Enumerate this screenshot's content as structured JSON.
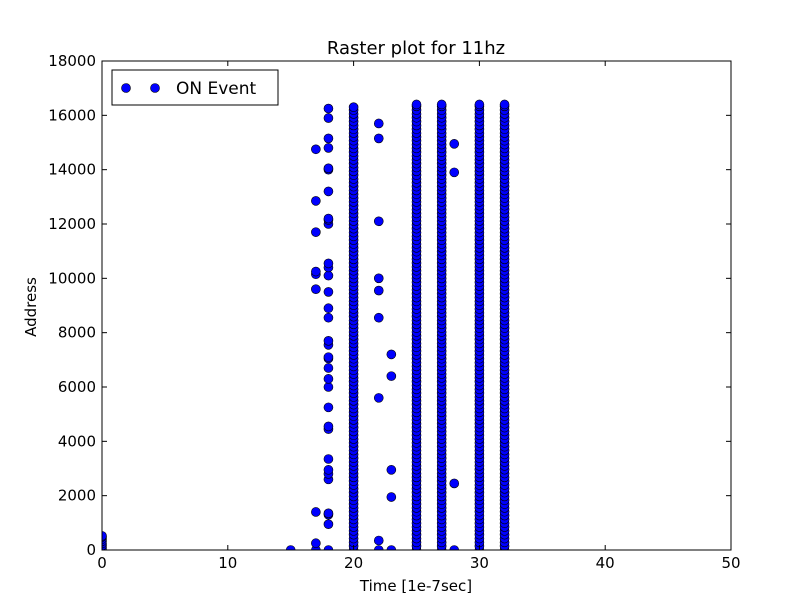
{
  "chart_data": {
    "type": "scatter",
    "title": "Raster plot for 11hz",
    "xlabel": "Time [1e-7sec]",
    "ylabel": "Address",
    "xlim": [
      0,
      50
    ],
    "ylim": [
      0,
      18000
    ],
    "xticks": [
      0,
      10,
      20,
      30,
      40,
      50
    ],
    "yticks": [
      0,
      2000,
      4000,
      6000,
      8000,
      10000,
      12000,
      14000,
      16000,
      18000
    ],
    "grid": false,
    "legend": {
      "placement": "top-left",
      "entries": [
        "ON Event"
      ]
    },
    "marker_color": "#0000ff",
    "series": [
      {
        "name": "ON Event",
        "columns": [
          {
            "x": 0,
            "y": [
              0,
              80,
              160,
              240,
              320,
              400,
              480,
              520
            ]
          },
          {
            "x": 15,
            "y": [
              0
            ]
          },
          {
            "x": 17,
            "y": [
              0,
              250,
              1400,
              9600,
              10150,
              10250,
              11700,
              12850,
              14750
            ]
          },
          {
            "x": 18,
            "y": [
              0,
              950,
              1300,
              1350,
              2600,
              2800,
              2950,
              3350,
              4450,
              4550,
              5250,
              6000,
              6300,
              6700,
              7050,
              7100,
              7550,
              7700,
              8550,
              8900,
              9500,
              10100,
              10400,
              10550,
              12000,
              12150,
              12200,
              13200,
              14000,
              14050,
              14800,
              15150,
              15900,
              16250
            ]
          },
          {
            "x": 20,
            "y": [
              0,
              16300
            ]
          },
          {
            "x": 22,
            "y": [
              0,
              350,
              5600,
              8550,
              9550,
              10000,
              12100,
              15150,
              15700
            ]
          },
          {
            "x": 23,
            "y": [
              0,
              1950,
              2950,
              6400,
              7200
            ]
          },
          {
            "x": 25,
            "y": [
              0,
              16400
            ]
          },
          {
            "x": 27,
            "y": [
              0,
              16400
            ]
          },
          {
            "x": 28,
            "y": [
              0,
              2450,
              13900,
              14950
            ]
          },
          {
            "x": 30,
            "y": [
              0,
              16400
            ]
          },
          {
            "x": 32,
            "y": [
              0,
              16400
            ]
          }
        ]
      }
    ]
  }
}
